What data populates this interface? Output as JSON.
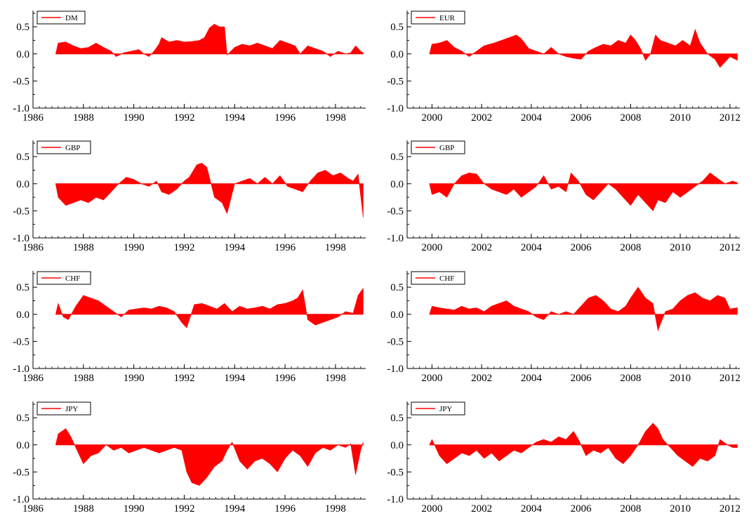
{
  "fill_color": "#ff0000",
  "axis_color": "#000000",
  "chart_data": [
    {
      "type": "area",
      "legend": "DM",
      "legend_position": "top-left",
      "xlim": [
        1986,
        1999.2
      ],
      "ylim": [
        -1.0,
        0.8
      ],
      "xticks": [
        "1986",
        "1988",
        "1990",
        "1992",
        "1994",
        "1996",
        "1998"
      ],
      "yticks": [
        "0.5",
        "0.0",
        "-0.5",
        "-1.0"
      ],
      "x": [
        1986.9,
        1987.0,
        1987.3,
        1987.6,
        1987.9,
        1988.2,
        1988.5,
        1988.8,
        1989.1,
        1989.3,
        1989.6,
        1989.9,
        1990.2,
        1990.4,
        1990.6,
        1990.8,
        1991.0,
        1991.1,
        1991.4,
        1991.7,
        1992.0,
        1992.3,
        1992.6,
        1992.8,
        1993.0,
        1993.2,
        1993.4,
        1993.6,
        1993.7,
        1994.0,
        1994.3,
        1994.6,
        1994.9,
        1995.2,
        1995.5,
        1995.8,
        1996.1,
        1996.4,
        1996.6,
        1996.9,
        1997.2,
        1997.5,
        1997.8,
        1998.1,
        1998.4,
        1998.6,
        1998.8,
        1999.0,
        1999.1
      ],
      "values": [
        0.0,
        0.2,
        0.22,
        0.15,
        0.1,
        0.12,
        0.2,
        0.12,
        0.05,
        -0.05,
        0.02,
        0.05,
        0.08,
        0.0,
        -0.05,
        0.05,
        0.18,
        0.3,
        0.22,
        0.25,
        0.22,
        0.23,
        0.25,
        0.3,
        0.48,
        0.55,
        0.5,
        0.5,
        -0.02,
        0.12,
        0.18,
        0.15,
        0.2,
        0.15,
        0.1,
        0.25,
        0.2,
        0.15,
        0.0,
        0.15,
        0.1,
        0.05,
        -0.05,
        0.05,
        0.0,
        0.02,
        0.15,
        0.05,
        0.02
      ]
    },
    {
      "type": "area",
      "legend": "EUR",
      "legend_position": "top-left",
      "xlim": [
        1999,
        2012.4
      ],
      "ylim": [
        -1.0,
        0.8
      ],
      "xticks": [
        "2000",
        "2002",
        "2004",
        "2006",
        "2008",
        "2010",
        "2012"
      ],
      "yticks": [
        "0.5",
        "0.0",
        "-0.5",
        "-1.0"
      ],
      "x": [
        1999.9,
        2000.0,
        2000.3,
        2000.6,
        2000.9,
        2001.2,
        2001.5,
        2001.8,
        2002.1,
        2002.5,
        2002.8,
        2003.1,
        2003.4,
        2003.6,
        2003.9,
        2004.2,
        2004.5,
        2004.8,
        2005.1,
        2005.4,
        2005.7,
        2006.0,
        2006.3,
        2006.6,
        2006.9,
        2007.2,
        2007.5,
        2007.8,
        2008.0,
        2008.2,
        2008.4,
        2008.6,
        2008.8,
        2009.0,
        2009.2,
        2009.5,
        2009.8,
        2010.1,
        2010.4,
        2010.6,
        2010.8,
        2011.1,
        2011.4,
        2011.6,
        2011.8,
        2012.0,
        2012.3
      ],
      "values": [
        0.0,
        0.18,
        0.2,
        0.25,
        0.12,
        0.05,
        -0.05,
        0.05,
        0.15,
        0.2,
        0.25,
        0.3,
        0.35,
        0.28,
        0.1,
        0.05,
        0.0,
        0.12,
        0.0,
        -0.05,
        -0.08,
        -0.1,
        0.05,
        0.12,
        0.18,
        0.15,
        0.25,
        0.2,
        0.35,
        0.25,
        0.1,
        -0.12,
        0.0,
        0.35,
        0.25,
        0.2,
        0.15,
        0.25,
        0.15,
        0.45,
        0.2,
        0.0,
        -0.1,
        -0.25,
        -0.15,
        -0.05,
        -0.12
      ]
    },
    {
      "type": "area",
      "legend": "GBP",
      "legend_position": "top-left",
      "xlim": [
        1986,
        1999.2
      ],
      "ylim": [
        -1.0,
        0.8
      ],
      "xticks": [
        "1986",
        "1988",
        "1990",
        "1992",
        "1994",
        "1996",
        "1998"
      ],
      "yticks": [
        "0.5",
        "0.0",
        "-0.5",
        "-1.0"
      ],
      "x": [
        1986.9,
        1987.0,
        1987.3,
        1987.6,
        1987.9,
        1988.2,
        1988.5,
        1988.8,
        1989.1,
        1989.4,
        1989.7,
        1990.0,
        1990.3,
        1990.6,
        1990.9,
        1991.1,
        1991.4,
        1991.7,
        1992.0,
        1992.2,
        1992.5,
        1992.7,
        1992.9,
        1993.2,
        1993.5,
        1993.7,
        1994.0,
        1994.3,
        1994.6,
        1994.9,
        1995.2,
        1995.5,
        1995.8,
        1996.1,
        1996.4,
        1996.7,
        1997.0,
        1997.3,
        1997.6,
        1997.9,
        1998.2,
        1998.5,
        1998.7,
        1998.9,
        1999.1
      ],
      "values": [
        0.0,
        -0.25,
        -0.4,
        -0.35,
        -0.3,
        -0.35,
        -0.25,
        -0.3,
        -0.15,
        0.0,
        0.12,
        0.08,
        0.0,
        -0.05,
        0.05,
        -0.15,
        -0.2,
        -0.1,
        0.05,
        0.12,
        0.35,
        0.38,
        0.3,
        -0.25,
        -0.35,
        -0.55,
        0.0,
        0.05,
        0.1,
        0.0,
        0.12,
        0.0,
        0.15,
        -0.05,
        -0.1,
        -0.15,
        0.05,
        0.2,
        0.25,
        0.15,
        0.2,
        0.1,
        0.05,
        0.18,
        -0.62
      ]
    },
    {
      "type": "area",
      "legend": "GBP",
      "legend_position": "top-left",
      "xlim": [
        1999,
        2012.4
      ],
      "ylim": [
        -1.0,
        0.8
      ],
      "xticks": [
        "2000",
        "2002",
        "2004",
        "2006",
        "2008",
        "2010",
        "2012"
      ],
      "yticks": [
        "0.5",
        "0.0",
        "-0.5",
        "-1.0"
      ],
      "x": [
        1999.9,
        2000.0,
        2000.3,
        2000.6,
        2000.9,
        2001.2,
        2001.5,
        2001.8,
        2002.1,
        2002.4,
        2002.7,
        2003.0,
        2003.3,
        2003.6,
        2003.9,
        2004.2,
        2004.5,
        2004.8,
        2005.1,
        2005.4,
        2005.6,
        2005.9,
        2006.2,
        2006.5,
        2006.8,
        2007.1,
        2007.4,
        2007.7,
        2008.0,
        2008.3,
        2008.6,
        2008.9,
        2009.1,
        2009.4,
        2009.7,
        2010.0,
        2010.3,
        2010.6,
        2010.9,
        2011.2,
        2011.5,
        2011.8,
        2012.1,
        2012.3
      ],
      "values": [
        0.0,
        -0.2,
        -0.15,
        -0.25,
        0.0,
        0.15,
        0.2,
        0.18,
        0.0,
        -0.1,
        -0.15,
        -0.2,
        -0.1,
        -0.25,
        -0.15,
        -0.05,
        0.15,
        -0.1,
        -0.05,
        -0.15,
        0.2,
        0.05,
        -0.2,
        -0.3,
        -0.15,
        0.0,
        -0.1,
        -0.25,
        -0.4,
        -0.2,
        -0.35,
        -0.5,
        -0.3,
        -0.35,
        -0.15,
        -0.25,
        -0.15,
        -0.05,
        0.05,
        0.2,
        0.1,
        0.0,
        0.05,
        0.02
      ]
    },
    {
      "type": "area",
      "legend": "CHF",
      "legend_position": "top-left",
      "xlim": [
        1986,
        1999.2
      ],
      "ylim": [
        -1.0,
        0.8
      ],
      "xticks": [
        "1986",
        "1988",
        "1990",
        "1992",
        "1994",
        "1996",
        "1998"
      ],
      "yticks": [
        "0.5",
        "0.0",
        "-0.5",
        "-1.0"
      ],
      "x": [
        1986.9,
        1987.0,
        1987.2,
        1987.4,
        1987.7,
        1988.0,
        1988.3,
        1988.6,
        1988.9,
        1989.2,
        1989.5,
        1989.8,
        1990.1,
        1990.4,
        1990.7,
        1991.0,
        1991.3,
        1991.6,
        1991.9,
        1992.1,
        1992.4,
        1992.7,
        1993.0,
        1993.3,
        1993.6,
        1993.9,
        1994.2,
        1994.5,
        1994.8,
        1995.1,
        1995.4,
        1995.7,
        1996.0,
        1996.3,
        1996.5,
        1996.7,
        1996.9,
        1997.2,
        1997.5,
        1997.8,
        1998.1,
        1998.4,
        1998.7,
        1998.9,
        1999.1
      ],
      "values": [
        0.0,
        0.2,
        -0.05,
        -0.1,
        0.15,
        0.35,
        0.3,
        0.25,
        0.15,
        0.05,
        -0.05,
        0.08,
        0.1,
        0.12,
        0.1,
        0.15,
        0.12,
        0.05,
        -0.15,
        -0.25,
        0.18,
        0.2,
        0.15,
        0.1,
        0.2,
        0.05,
        0.15,
        0.1,
        0.12,
        0.15,
        0.1,
        0.18,
        0.2,
        0.25,
        0.3,
        0.45,
        -0.1,
        -0.2,
        -0.15,
        -0.1,
        -0.05,
        0.05,
        0.02,
        0.35,
        0.48
      ]
    },
    {
      "type": "area",
      "legend": "CHF",
      "legend_position": "top-left",
      "xlim": [
        1999,
        2012.4
      ],
      "ylim": [
        -1.0,
        0.8
      ],
      "xticks": [
        "2000",
        "2002",
        "2004",
        "2006",
        "2008",
        "2010",
        "2012"
      ],
      "yticks": [
        "0.5",
        "0.0",
        "-0.5",
        "-1.0"
      ],
      "x": [
        1999.9,
        2000.0,
        2000.3,
        2000.6,
        2000.9,
        2001.2,
        2001.5,
        2001.8,
        2002.1,
        2002.4,
        2002.7,
        2003.0,
        2003.3,
        2003.6,
        2003.9,
        2004.2,
        2004.5,
        2004.8,
        2005.1,
        2005.4,
        2005.7,
        2006.0,
        2006.3,
        2006.6,
        2006.9,
        2007.2,
        2007.5,
        2007.8,
        2008.0,
        2008.3,
        2008.6,
        2008.9,
        2009.1,
        2009.4,
        2009.7,
        2010.0,
        2010.3,
        2010.6,
        2010.9,
        2011.2,
        2011.5,
        2011.8,
        2012.0,
        2012.3
      ],
      "values": [
        0.0,
        0.15,
        0.12,
        0.1,
        0.08,
        0.15,
        0.1,
        0.12,
        0.05,
        0.15,
        0.2,
        0.25,
        0.15,
        0.1,
        0.05,
        -0.05,
        -0.1,
        0.05,
        0.0,
        0.05,
        0.0,
        0.15,
        0.3,
        0.35,
        0.25,
        0.1,
        0.05,
        0.15,
        0.3,
        0.5,
        0.3,
        0.2,
        -0.3,
        0.05,
        0.1,
        0.25,
        0.35,
        0.4,
        0.3,
        0.25,
        0.35,
        0.3,
        0.1,
        0.12
      ]
    },
    {
      "type": "area",
      "legend": "JPY",
      "legend_position": "top-left",
      "xlim": [
        1986,
        1999.2
      ],
      "ylim": [
        -1.0,
        0.8
      ],
      "xticks": [
        "1986",
        "1988",
        "1990",
        "1992",
        "1994",
        "1996",
        "1998"
      ],
      "yticks": [
        "0.5",
        "0.0",
        "-0.5",
        "-1.0"
      ],
      "x": [
        1986.9,
        1987.0,
        1987.3,
        1987.5,
        1987.8,
        1988.0,
        1988.3,
        1988.6,
        1988.9,
        1989.2,
        1989.5,
        1989.8,
        1990.1,
        1990.4,
        1990.7,
        1991.0,
        1991.3,
        1991.6,
        1991.9,
        1992.1,
        1992.3,
        1992.6,
        1992.9,
        1993.2,
        1993.5,
        1993.7,
        1993.9,
        1994.2,
        1994.5,
        1994.8,
        1995.1,
        1995.4,
        1995.7,
        1996.0,
        1996.3,
        1996.6,
        1996.9,
        1997.2,
        1997.5,
        1997.8,
        1998.1,
        1998.4,
        1998.6,
        1998.8,
        1999.0,
        1999.1
      ],
      "values": [
        0.0,
        0.2,
        0.3,
        0.15,
        -0.15,
        -0.35,
        -0.2,
        -0.15,
        0.0,
        -0.1,
        -0.05,
        -0.15,
        -0.1,
        -0.05,
        -0.1,
        -0.15,
        -0.1,
        -0.05,
        -0.1,
        -0.5,
        -0.7,
        -0.75,
        -0.6,
        -0.4,
        -0.3,
        -0.1,
        0.05,
        -0.3,
        -0.45,
        -0.3,
        -0.25,
        -0.35,
        -0.5,
        -0.25,
        -0.1,
        -0.2,
        -0.4,
        -0.15,
        -0.05,
        -0.1,
        0.0,
        -0.05,
        0.02,
        -0.55,
        -0.1,
        0.05
      ]
    },
    {
      "type": "area",
      "legend": "JPY",
      "legend_position": "top-left",
      "xlim": [
        1999,
        2012.4
      ],
      "ylim": [
        -1.0,
        0.8
      ],
      "xticks": [
        "2000",
        "2002",
        "2004",
        "2006",
        "2008",
        "2010",
        "2012"
      ],
      "yticks": [
        "0.5",
        "0.0",
        "-0.5",
        "-1.0"
      ],
      "x": [
        1999.9,
        2000.0,
        2000.3,
        2000.6,
        2000.9,
        2001.2,
        2001.5,
        2001.8,
        2002.1,
        2002.4,
        2002.7,
        2003.0,
        2003.3,
        2003.6,
        2003.9,
        2004.2,
        2004.5,
        2004.8,
        2005.1,
        2005.4,
        2005.7,
        2005.9,
        2006.2,
        2006.5,
        2006.8,
        2007.1,
        2007.4,
        2007.7,
        2008.0,
        2008.3,
        2008.6,
        2008.9,
        2009.1,
        2009.3,
        2009.6,
        2009.9,
        2010.2,
        2010.5,
        2010.8,
        2011.1,
        2011.4,
        2011.6,
        2011.9,
        2012.1,
        2012.3
      ],
      "values": [
        0.0,
        0.1,
        -0.2,
        -0.35,
        -0.25,
        -0.15,
        -0.2,
        -0.1,
        -0.25,
        -0.15,
        -0.3,
        -0.2,
        -0.1,
        -0.15,
        -0.05,
        0.05,
        0.1,
        0.05,
        0.15,
        0.1,
        0.25,
        0.1,
        -0.2,
        -0.1,
        -0.15,
        -0.05,
        -0.25,
        -0.35,
        -0.2,
        0.0,
        0.25,
        0.4,
        0.3,
        0.1,
        -0.05,
        -0.2,
        -0.3,
        -0.4,
        -0.25,
        -0.3,
        -0.2,
        0.1,
        0.0,
        -0.05,
        -0.05
      ]
    }
  ]
}
